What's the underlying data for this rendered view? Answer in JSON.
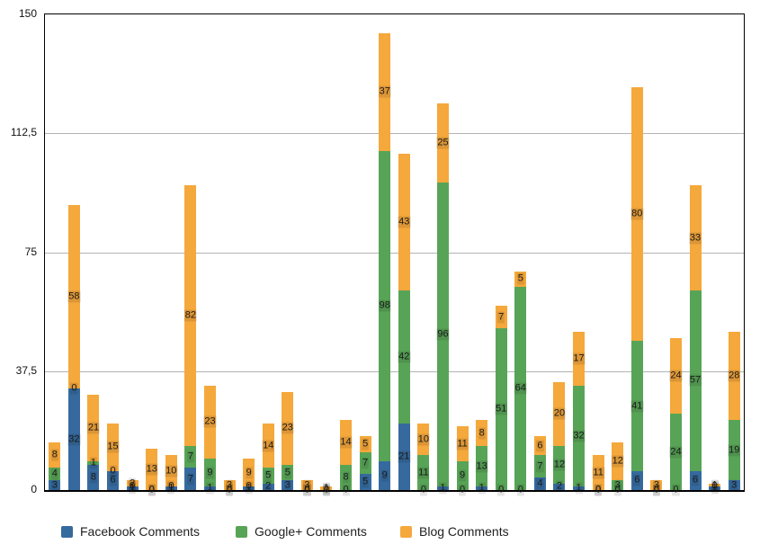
{
  "chart_data": {
    "type": "bar",
    "stacked": true,
    "title": "",
    "xlabel": "",
    "ylabel": "",
    "ylim": [
      0,
      150
    ],
    "grid": true,
    "legend_position": "bottom",
    "x_axis_labels_visible": false,
    "yticks": [
      {
        "label": "0",
        "value": 0
      },
      {
        "label": "37,5",
        "value": 37.5
      },
      {
        "label": "75",
        "value": 75
      },
      {
        "label": "112,5",
        "value": 112.5
      },
      {
        "label": "150",
        "value": 150
      }
    ],
    "series": [
      {
        "name": "Facebook Comments",
        "color": "#366A9E",
        "values": [
          3,
          32,
          8,
          6,
          1,
          0,
          1,
          7,
          1,
          0,
          1,
          2,
          3,
          0,
          0,
          0,
          5,
          9,
          21,
          0,
          1,
          0,
          1,
          0,
          0,
          4,
          2,
          1,
          0,
          0,
          6,
          0,
          0,
          6,
          1,
          3
        ]
      },
      {
        "name": "Google+ Comments",
        "color": "#58A457",
        "values": [
          4,
          0,
          1,
          0,
          0,
          0,
          0,
          7,
          9,
          0,
          0,
          5,
          5,
          0,
          0,
          8,
          7,
          98,
          42,
          11,
          96,
          9,
          13,
          51,
          64,
          7,
          12,
          32,
          0,
          3,
          41,
          0,
          24,
          57,
          0,
          19
        ]
      },
      {
        "name": "Blog Comments",
        "color": "#F5A83B",
        "values": [
          8,
          58,
          21,
          15,
          2,
          13,
          10,
          82,
          23,
          3,
          9,
          14,
          23,
          3,
          1,
          14,
          5,
          37,
          43,
          10,
          25,
          11,
          8,
          7,
          5,
          6,
          20,
          17,
          11,
          12,
          80,
          3,
          24,
          33,
          1,
          28
        ]
      }
    ]
  }
}
